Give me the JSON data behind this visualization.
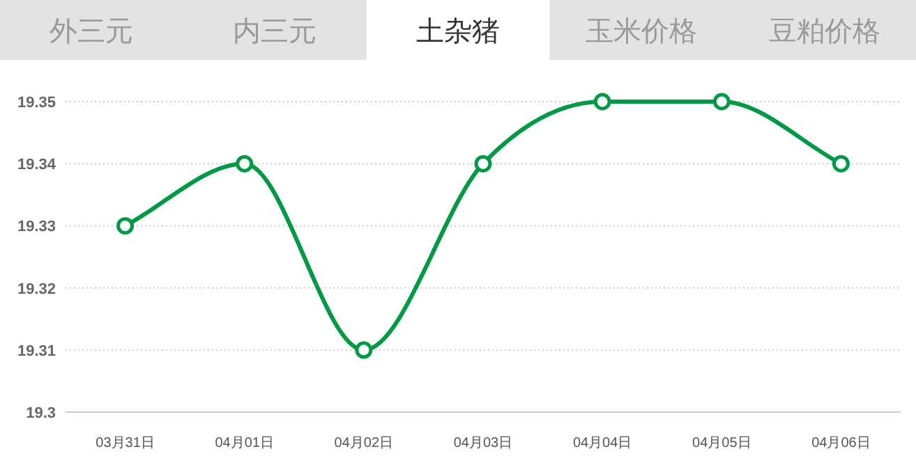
{
  "chart_data": {
    "type": "line",
    "title": "土杂猪",
    "annotations": [
      "外三元",
      "内三元",
      "玉米价格",
      "豆粕价格"
    ],
    "categories": [
      "03月31日",
      "04月01日",
      "04月02日",
      "04月03日",
      "04月04日",
      "04月05日",
      "04月06日"
    ],
    "series": [
      {
        "color": "#009944",
        "values": [
          19.33,
          19.34,
          19.31,
          19.34,
          19.35,
          19.35,
          19.34
        ]
      }
    ],
    "ylim": [
      19.3,
      19.35
    ],
    "yticks": [
      19.3,
      19.31,
      19.32,
      19.33,
      19.34,
      19.35
    ],
    "grid": "y",
    "marker": "circle",
    "line_style": "solid"
  }
}
